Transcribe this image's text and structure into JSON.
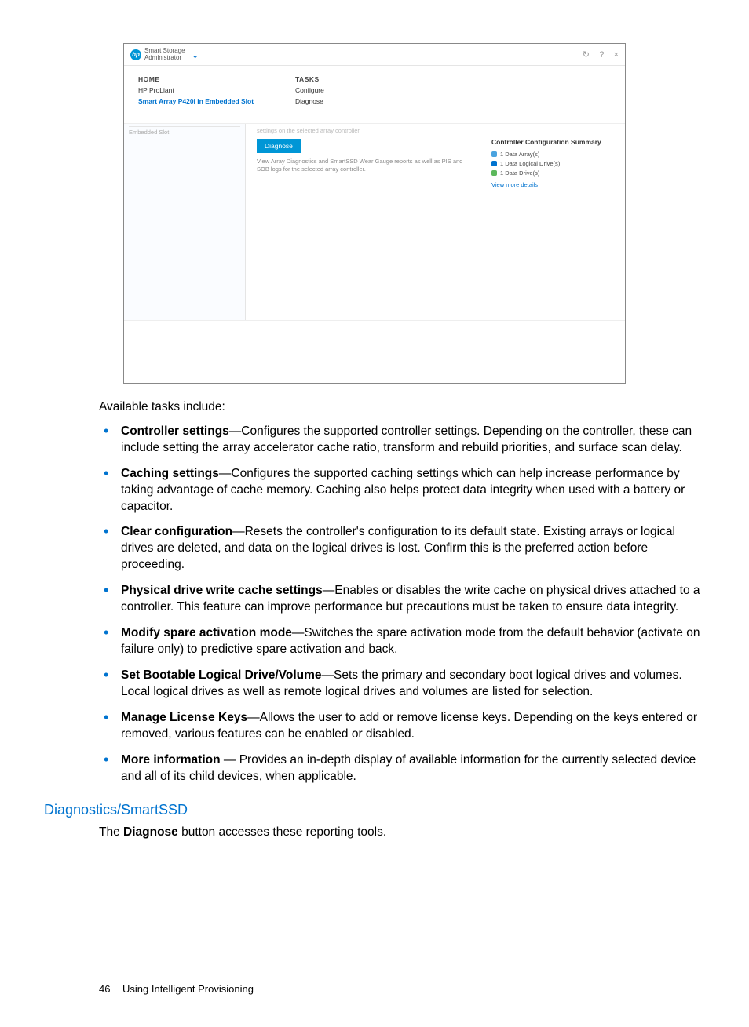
{
  "screenshot": {
    "appTitle1": "Smart Storage",
    "appTitle2": "Administrator",
    "headerIcons": {
      "refresh": "↻",
      "help": "?",
      "close": "×",
      "chevron": "⌄"
    },
    "columns": {
      "home": {
        "label": "HOME",
        "line1": "HP ProLiant",
        "line2": "Smart Array P420i in Embedded Slot"
      },
      "tasks": {
        "label": "TASKS",
        "line1": "Configure",
        "line2": "Diagnose"
      }
    },
    "side": {
      "item": "Embedded Slot"
    },
    "center": {
      "faint": "settings on the selected array controller.",
      "button": "Diagnose",
      "desc": "View Array Diagnostics and SmartSSD Wear Gauge reports as well as PIS and SOB logs for the selected array controller."
    },
    "right": {
      "title": "Controller Configuration Summary",
      "rows": [
        {
          "color": "#4aa3df",
          "text": "1 Data Array(s)"
        },
        {
          "color": "#0073cf",
          "text": "1 Data Logical Drive(s)"
        },
        {
          "color": "#5cb85c",
          "text": "1 Data Drive(s)"
        }
      ],
      "link": "View more details"
    }
  },
  "doc": {
    "intro": "Available tasks include:",
    "tasks": [
      {
        "term": "Controller settings",
        "text": "—Configures the supported controller settings. Depending on the controller, these can include setting the array accelerator cache ratio, transform and rebuild priorities, and surface scan delay."
      },
      {
        "term": "Caching settings",
        "text": "—Configures the supported caching settings which can help increase performance by taking advantage of cache memory. Caching also helps protect data integrity when used with a battery or capacitor."
      },
      {
        "term": "Clear configuration",
        "text": "—Resets the controller's configuration to its default state. Existing arrays or logical drives are deleted, and data on the logical drives is lost. Confirm this is the preferred action before proceeding."
      },
      {
        "term": "Physical drive write cache settings",
        "text": "—Enables or disables the write cache on physical drives attached to a controller. This feature can improve performance but precautions must be taken to ensure data integrity."
      },
      {
        "term": "Modify spare activation mode",
        "text": "—Switches the spare activation mode from the default behavior (activate on failure only) to predictive spare activation and back."
      },
      {
        "term": "Set Bootable Logical Drive/Volume",
        "text": "—Sets the primary and secondary boot logical drives and volumes. Local logical drives as well as remote logical drives and volumes are listed for selection."
      },
      {
        "term": "Manage License Keys",
        "text": "—Allows the user to add or remove license keys. Depending on the keys entered or removed, various features can be enabled or disabled."
      },
      {
        "term": "More information",
        "text": " — Provides an in-depth display of available information for the currently selected device and all of its child devices, when applicable."
      }
    ],
    "heading": "Diagnostics/SmartSSD",
    "afterHeadingPre": "The ",
    "afterHeadingBold": "Diagnose",
    "afterHeadingPost": " button accesses these reporting tools.",
    "footerPage": "46",
    "footerText": "Using Intelligent Provisioning"
  }
}
